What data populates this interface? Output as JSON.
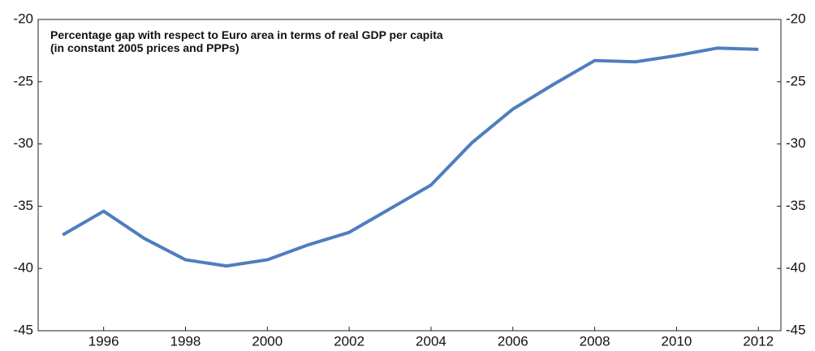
{
  "chart_data": {
    "type": "line",
    "title": "Percentage gap with respect to Euro area in terms of real GDP per capita",
    "subtitle": "(in constant 2005 prices and PPPs)",
    "x": [
      1995,
      1996,
      1997,
      1998,
      1999,
      2000,
      2001,
      2002,
      2003,
      2004,
      2005,
      2006,
      2007,
      2008,
      2009,
      2010,
      2011,
      2012
    ],
    "values": [
      -37.3,
      -35.4,
      -37.6,
      -39.3,
      -39.8,
      -39.3,
      -38.1,
      -37.1,
      -35.2,
      -33.3,
      -29.9,
      -27.2,
      -25.2,
      -23.3,
      -23.4,
      -22.9,
      -22.3,
      -22.4
    ],
    "color": "#4f7dbf",
    "xlim": [
      1994.4,
      2012.55
    ],
    "xticks": [
      1996,
      1998,
      2000,
      2002,
      2004,
      2006,
      2008,
      2010,
      2012
    ],
    "ylim": [
      -45,
      -20
    ],
    "yticks": [
      -45,
      -40,
      -35,
      -30,
      -25,
      -20
    ],
    "y2lim": [
      -45,
      -20
    ],
    "y2ticks": [
      -45,
      -40,
      -35,
      -30,
      -25,
      -20
    ],
    "grid": false
  }
}
